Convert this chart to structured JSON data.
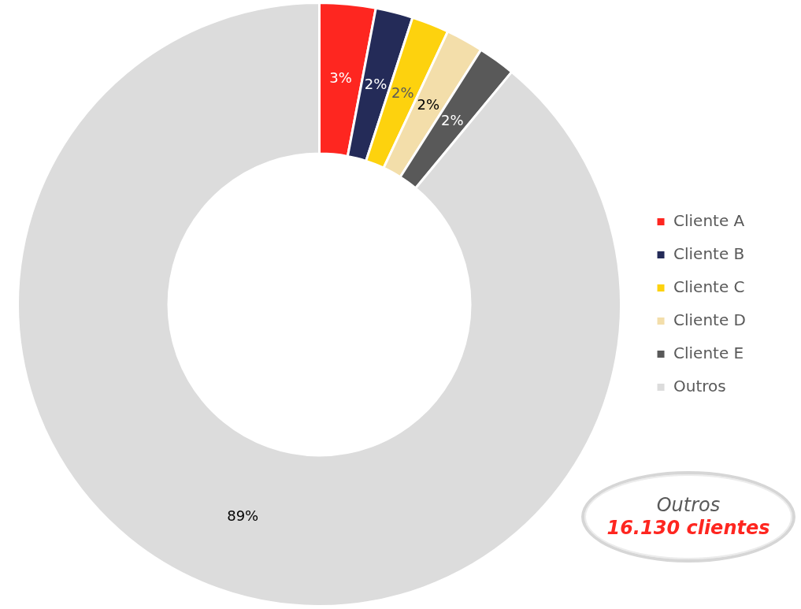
{
  "chart_data": {
    "type": "donut",
    "categories": [
      "Cliente A",
      "Cliente B",
      "Cliente C",
      "Cliente D",
      "Cliente E",
      "Outros"
    ],
    "values": [
      3,
      2,
      2,
      2,
      2,
      89
    ],
    "colors": [
      "#fe2620",
      "#242b58",
      "#fdd20e",
      "#f3deaa",
      "#595959",
      "#dcdcdc"
    ],
    "value_labels": [
      "3%",
      "2%",
      "2%",
      "2%",
      "2%",
      "89%"
    ],
    "legend": "right",
    "annotations": [
      "Outros",
      "16.130 clientes"
    ]
  }
}
